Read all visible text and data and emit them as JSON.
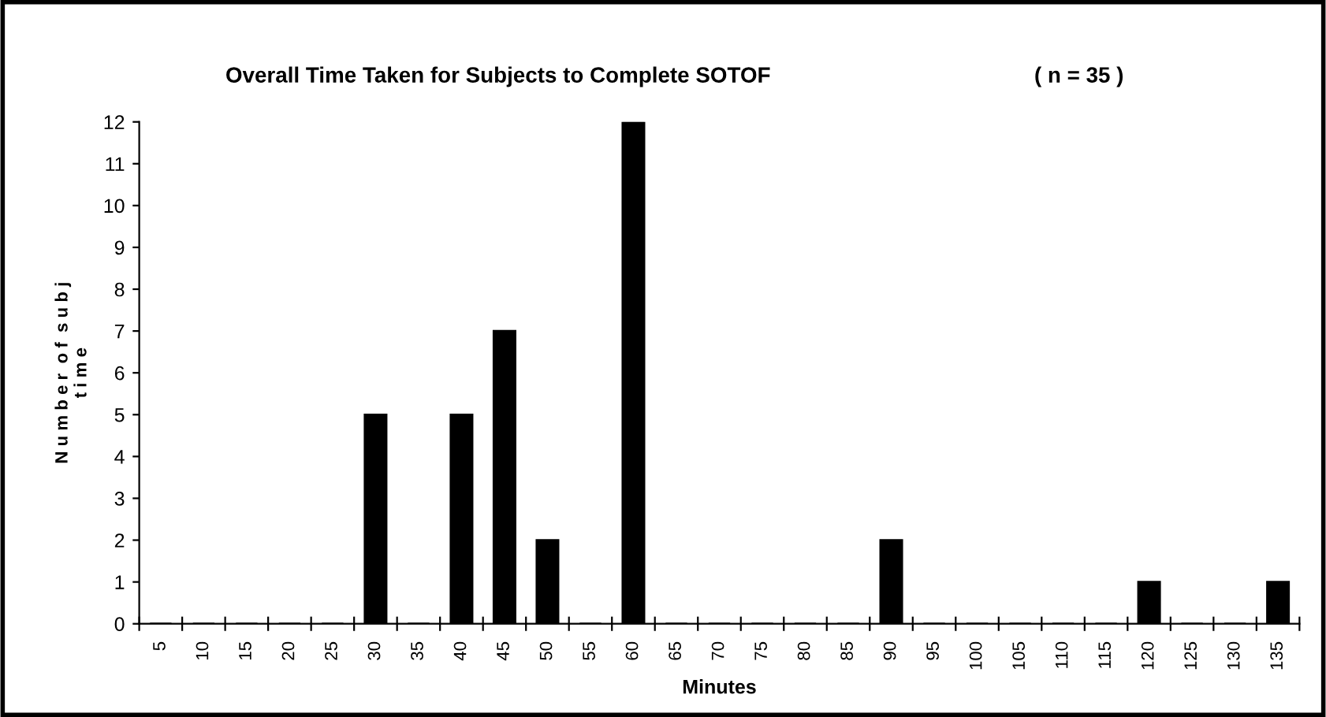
{
  "chart_data": {
    "type": "bar",
    "title": "Overall Time Taken for Subjects to Complete SOTOF",
    "subtitle": "( n = 35 )",
    "xlabel": "Minutes",
    "ylabel": "N u m b e r  o f  s u b j\nt i m e",
    "categories": [
      "5",
      "10",
      "15",
      "20",
      "25",
      "30",
      "35",
      "40",
      "45",
      "50",
      "55",
      "60",
      "65",
      "70",
      "75",
      "80",
      "85",
      "90",
      "95",
      "100",
      "105",
      "110",
      "115",
      "120",
      "125",
      "130",
      "135"
    ],
    "values": [
      0,
      0,
      0,
      0,
      0,
      5,
      0,
      5,
      7,
      2,
      0,
      12,
      0,
      0,
      0,
      0,
      0,
      2,
      0,
      0,
      0,
      0,
      0,
      1,
      0,
      0,
      1
    ],
    "color": "#000000",
    "ylim": [
      0,
      12
    ],
    "yticks": [
      0,
      1,
      2,
      3,
      4,
      5,
      6,
      7,
      8,
      9,
      10,
      11,
      12
    ],
    "grid": false,
    "legend": false
  }
}
